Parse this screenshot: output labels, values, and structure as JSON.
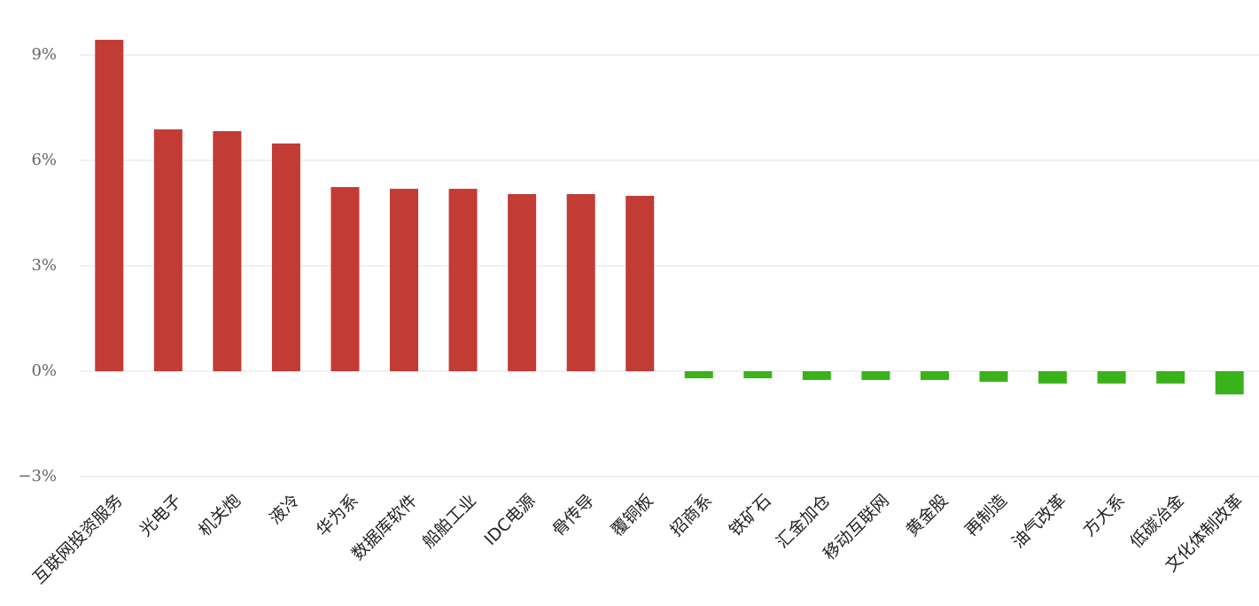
{
  "chart_data": {
    "type": "bar",
    "categories": [
      "互联网投资服务",
      "光电子",
      "机关炮",
      "液冷",
      "华为系",
      "数据库软件",
      "船舶工业",
      "IDC电源",
      "骨传导",
      "覆铜板",
      "招商系",
      "铁矿石",
      "汇金加仓",
      "移动互联网",
      "黄金股",
      "再制造",
      "油气改革",
      "方大系",
      "低碳冶金",
      "文化体制改革"
    ],
    "values": [
      9.43,
      6.88,
      6.83,
      6.48,
      5.24,
      5.19,
      5.19,
      5.04,
      5.04,
      4.99,
      -0.2,
      -0.2,
      -0.25,
      -0.25,
      -0.25,
      -0.3,
      -0.35,
      -0.35,
      -0.35,
      -0.66
    ],
    "positive_color": "#c23b35",
    "negative_color": "#3ab219",
    "ylim": [
      -3,
      10
    ],
    "yticks": [
      {
        "value": -3,
        "label": "−3%"
      },
      {
        "value": 0,
        "label": "0%"
      },
      {
        "value": 3,
        "label": "3%"
      },
      {
        "value": 6,
        "label": "6%"
      },
      {
        "value": 9,
        "label": "9%"
      }
    ],
    "grid": true
  }
}
